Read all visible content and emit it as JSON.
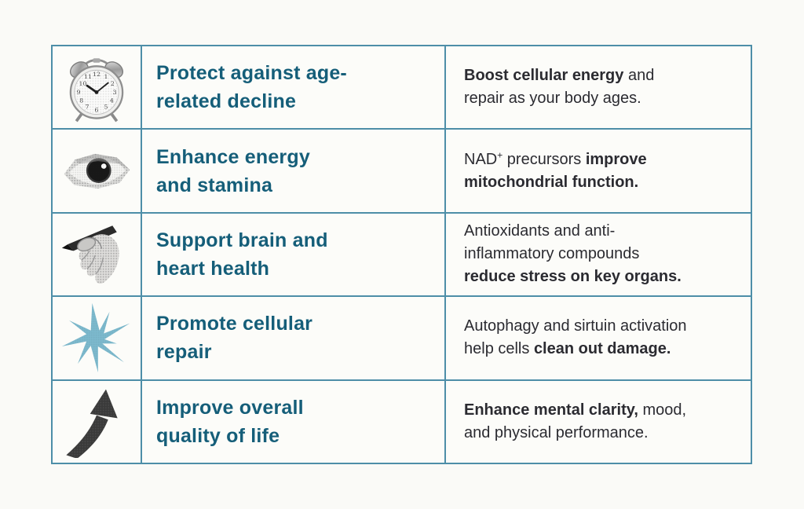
{
  "page": {
    "background_color": "#fafaf7",
    "table_border_color": "#4d8ea8",
    "heading_text_color": "#155e79",
    "body_text_color": "#2b2b31",
    "starburst_color": "#7cb9cd"
  },
  "chart_data": {
    "type": "table",
    "title": "",
    "columns": [
      "icon",
      "benefit",
      "how_it_works"
    ],
    "rows": [
      [
        "alarm-clock",
        "Protect against age-related decline",
        "Boost cellular energy and repair as your body ages."
      ],
      [
        "eye",
        "Enhance energy and stamina",
        "NAD+ precursors improve mitochondrial function."
      ],
      [
        "hand-writing",
        "Support brain and heart health",
        "Antioxidants and anti-inflammatory compounds reduce stress on key organs."
      ],
      [
        "starburst",
        "Promote cellular repair",
        "Autophagy and sirtuin activation help cells clean out damage."
      ],
      [
        "curved-arrow",
        "Improve overall quality of life",
        "Enhance mental clarity, mood, and physical performance."
      ]
    ]
  },
  "table": {
    "rows": [
      {
        "icon": "alarm-clock",
        "heading_lines": [
          "Protect against age-",
          "related decline"
        ],
        "description_segments": [
          {
            "text": "Boost cellular energy",
            "bold": true
          },
          {
            "text": " and",
            "bold": false
          },
          {
            "break": true
          },
          {
            "text": "repair as your body ages.",
            "bold": false
          }
        ]
      },
      {
        "icon": "eye",
        "heading_lines": [
          "Enhance energy",
          "and stamina"
        ],
        "description_segments": [
          {
            "text": "NAD",
            "bold": false
          },
          {
            "text": "+",
            "bold": false,
            "sup": true
          },
          {
            "text": " precursors ",
            "bold": false
          },
          {
            "text": "improve",
            "bold": true
          },
          {
            "break": true
          },
          {
            "text": "mitochondrial function.",
            "bold": true
          }
        ]
      },
      {
        "icon": "hand-writing",
        "heading_lines": [
          "Support brain and",
          "heart health"
        ],
        "description_segments": [
          {
            "text": "Antioxidants and anti-",
            "bold": false
          },
          {
            "break": true
          },
          {
            "text": "inflammatory compounds",
            "bold": false
          },
          {
            "break": true
          },
          {
            "text": "reduce stress on key organs.",
            "bold": true
          }
        ]
      },
      {
        "icon": "starburst",
        "heading_lines": [
          "Promote cellular",
          "repair"
        ],
        "description_segments": [
          {
            "text": "Autophagy and sirtuin activation",
            "bold": false
          },
          {
            "break": true
          },
          {
            "text": "help cells ",
            "bold": false
          },
          {
            "text": "clean out damage.",
            "bold": true
          }
        ]
      },
      {
        "icon": "curved-arrow",
        "heading_lines": [
          "Improve overall",
          "quality of life"
        ],
        "description_segments": [
          {
            "text": "Enhance mental clarity,",
            "bold": true
          },
          {
            "text": " mood,",
            "bold": false
          },
          {
            "break": true
          },
          {
            "text": "and physical performance.",
            "bold": false
          }
        ]
      }
    ]
  }
}
